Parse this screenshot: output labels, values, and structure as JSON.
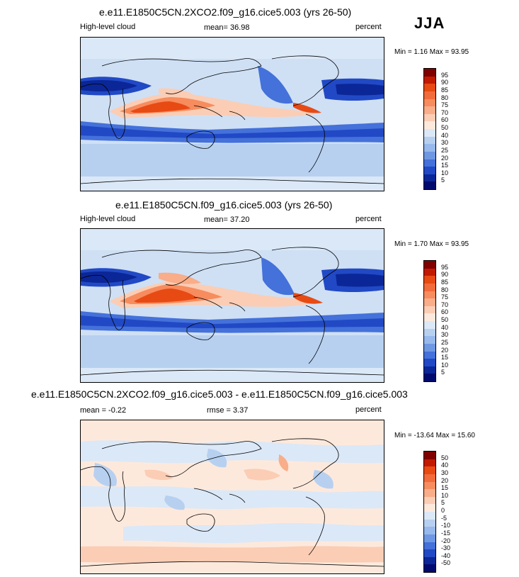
{
  "season": "JJA",
  "panels": [
    {
      "title": "e.e11.E1850C5CN.2XCO2.f09_g16.cice5.003 (yrs 26-50)",
      "left_label": "High-level cloud",
      "mid_label": "mean=  36.98",
      "right_label": "percent",
      "minmax": "Min =   1.16 Max =  93.95",
      "levels": [
        "95",
        "90",
        "85",
        "80",
        "75",
        "70",
        "60",
        "50",
        "40",
        "30",
        "25",
        "20",
        "15",
        "10",
        "5"
      ],
      "colors": [
        "#800000",
        "#c21a00",
        "#e84a14",
        "#f26b3a",
        "#f78c5e",
        "#f9ad89",
        "#fbcdb4",
        "#fde9dc",
        "#dbe8f7",
        "#b7d0f0",
        "#97b9ec",
        "#6f98e3",
        "#4471da",
        "#2149c5",
        "#0b2697",
        "#000a6e"
      ]
    },
    {
      "title": "e.e11.E1850C5CN.f09_g16.cice5.003 (yrs 26-50)",
      "left_label": "High-level cloud",
      "mid_label": "mean=  37.20",
      "right_label": "percent",
      "minmax": "Min =   1.70 Max =  93.95",
      "levels": [
        "95",
        "90",
        "85",
        "80",
        "75",
        "70",
        "60",
        "50",
        "40",
        "30",
        "25",
        "20",
        "15",
        "10",
        "5"
      ],
      "colors": [
        "#800000",
        "#c21a00",
        "#e84a14",
        "#f26b3a",
        "#f78c5e",
        "#f9ad89",
        "#fbcdb4",
        "#fde9dc",
        "#dbe8f7",
        "#b7d0f0",
        "#97b9ec",
        "#6f98e3",
        "#4471da",
        "#2149c5",
        "#0b2697",
        "#000a6e"
      ]
    },
    {
      "title": "e.e11.E1850C5CN.2XCO2.f09_g16.cice5.003 - e.e11.E1850C5CN.f09_g16.cice5.003",
      "left_label": "mean =  -0.22",
      "mid_label": "rmse =   3.37",
      "right_label": "percent",
      "minmax": "Min = -13.64 Max =  15.60",
      "levels": [
        "50",
        "40",
        "30",
        "20",
        "15",
        "10",
        "5",
        "0",
        "-5",
        "-10",
        "-15",
        "-20",
        "-30",
        "-40",
        "-50"
      ],
      "colors": [
        "#800000",
        "#c21a00",
        "#e84a14",
        "#f26b3a",
        "#f78c5e",
        "#f9ad89",
        "#fbcdb4",
        "#fde9dc",
        "#dbe8f7",
        "#b7d0f0",
        "#97b9ec",
        "#6f98e3",
        "#4471da",
        "#2149c5",
        "#0b2697",
        "#000a6e"
      ]
    }
  ]
}
